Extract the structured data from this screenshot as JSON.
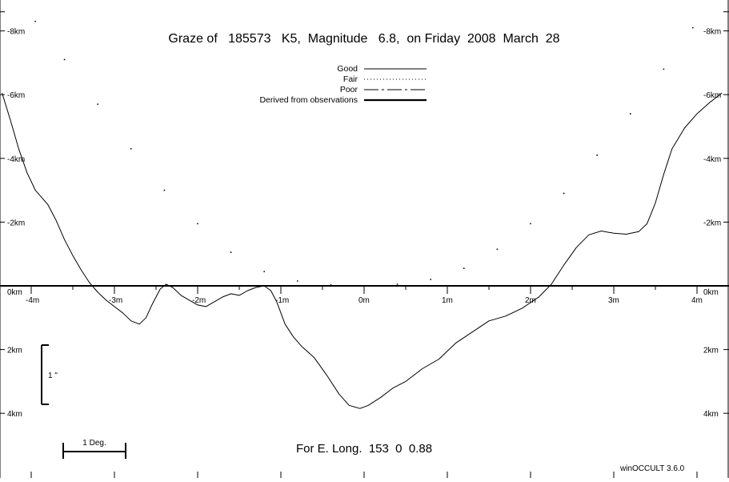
{
  "chart_data": {
    "type": "line",
    "title": "Graze of   185573   K5,  Magnitude   6.8,  on Friday  2008  March  28",
    "subtitle": "For E. Long.  153  0  0.88",
    "software": "winOCCULT 3.6.0",
    "x_unit": "minutes of arc from center",
    "y_unit": "km",
    "xlim": [
      -4.35,
      4.3
    ],
    "ylim": [
      -8.6,
      5.8
    ],
    "x_ticks": [
      {
        "value": -4,
        "label": "-4m"
      },
      {
        "value": -3,
        "label": "-3m"
      },
      {
        "value": -2,
        "label": "-2m"
      },
      {
        "value": -1,
        "label": "-1m"
      },
      {
        "value": 0,
        "label": "0m"
      },
      {
        "value": 1,
        "label": "1m"
      },
      {
        "value": 2,
        "label": "2m"
      },
      {
        "value": 3,
        "label": "3m"
      },
      {
        "value": 4,
        "label": "4m"
      }
    ],
    "y_ticks": [
      {
        "value": -8,
        "label": "-8km"
      },
      {
        "value": -6,
        "label": "-6km"
      },
      {
        "value": -4,
        "label": "-4km"
      },
      {
        "value": -2,
        "label": "-2km"
      },
      {
        "value": 0,
        "label": "0km"
      },
      {
        "value": 2,
        "label": "2km"
      },
      {
        "value": 4,
        "label": "4km"
      }
    ],
    "legend": [
      {
        "label": "Good",
        "style": "solid"
      },
      {
        "label": "Fair",
        "style": "dotted"
      },
      {
        "label": "Poor",
        "style": "dashed"
      },
      {
        "label": "Derived from observations",
        "style": "thick"
      }
    ],
    "scale_bars": {
      "vertical_label": "1 \"",
      "horizontal_label": "1 Deg."
    },
    "series": [
      {
        "name": "Good",
        "style": "solid",
        "points": [
          [
            -4.35,
            -6.05
          ],
          [
            -4.25,
            -5.2
          ],
          [
            -4.15,
            -4.3
          ],
          [
            -4.05,
            -3.55
          ],
          [
            -3.95,
            -3.0
          ],
          [
            -3.8,
            -2.55
          ],
          [
            -3.7,
            -2.05
          ],
          [
            -3.6,
            -1.45
          ],
          [
            -3.5,
            -0.95
          ],
          [
            -3.4,
            -0.5
          ],
          [
            -3.3,
            -0.1
          ],
          [
            -3.2,
            0.2
          ],
          [
            -3.1,
            0.45
          ],
          [
            -3.0,
            0.65
          ],
          [
            -2.9,
            0.85
          ],
          [
            -2.8,
            1.1
          ],
          [
            -2.7,
            1.2
          ],
          [
            -2.62,
            1.0
          ],
          [
            -2.55,
            0.6
          ],
          [
            -2.45,
            0.1
          ],
          [
            -2.38,
            -0.05
          ],
          [
            -2.3,
            0.05
          ],
          [
            -2.2,
            0.3
          ],
          [
            -2.1,
            0.45
          ],
          [
            -2.0,
            0.6
          ],
          [
            -1.9,
            0.65
          ],
          [
            -1.8,
            0.5
          ],
          [
            -1.7,
            0.35
          ],
          [
            -1.6,
            0.25
          ],
          [
            -1.5,
            0.3
          ],
          [
            -1.4,
            0.15
          ],
          [
            -1.3,
            0.05
          ],
          [
            -1.2,
            0.0
          ],
          [
            -1.12,
            0.15
          ],
          [
            -1.05,
            0.5
          ],
          [
            -0.95,
            1.2
          ],
          [
            -0.85,
            1.6
          ],
          [
            -0.75,
            1.9
          ],
          [
            -0.6,
            2.25
          ],
          [
            -0.45,
            2.8
          ],
          [
            -0.3,
            3.4
          ],
          [
            -0.18,
            3.75
          ],
          [
            -0.05,
            3.85
          ],
          [
            0.05,
            3.75
          ],
          [
            0.2,
            3.5
          ],
          [
            0.35,
            3.2
          ],
          [
            0.5,
            3.0
          ],
          [
            0.7,
            2.6
          ],
          [
            0.9,
            2.3
          ],
          [
            1.1,
            1.8
          ],
          [
            1.3,
            1.45
          ],
          [
            1.5,
            1.1
          ],
          [
            1.7,
            0.95
          ],
          [
            1.9,
            0.7
          ],
          [
            2.1,
            0.35
          ],
          [
            2.25,
            -0.05
          ],
          [
            2.4,
            -0.65
          ],
          [
            2.55,
            -1.2
          ],
          [
            2.7,
            -1.6
          ],
          [
            2.85,
            -1.72
          ],
          [
            3.0,
            -1.65
          ],
          [
            3.15,
            -1.62
          ],
          [
            3.3,
            -1.7
          ],
          [
            3.4,
            -1.95
          ],
          [
            3.5,
            -2.6
          ],
          [
            3.6,
            -3.5
          ],
          [
            3.7,
            -4.3
          ],
          [
            3.85,
            -4.95
          ],
          [
            4.0,
            -5.4
          ],
          [
            4.15,
            -5.75
          ],
          [
            4.3,
            -6.05
          ]
        ]
      },
      {
        "name": "Fair",
        "style": "dotted",
        "points": [
          [
            -3.95,
            -8.3
          ],
          [
            -3.6,
            -7.1
          ],
          [
            -3.2,
            -5.7
          ],
          [
            -2.8,
            -4.3
          ],
          [
            -2.4,
            -3.0
          ],
          [
            -2.0,
            -1.95
          ],
          [
            -1.6,
            -1.05
          ],
          [
            -1.2,
            -0.45
          ],
          [
            -0.8,
            -0.15
          ],
          [
            -0.4,
            -0.03
          ],
          [
            0.0,
            0.0
          ],
          [
            0.4,
            -0.05
          ],
          [
            0.8,
            -0.2
          ],
          [
            1.2,
            -0.55
          ],
          [
            1.6,
            -1.15
          ],
          [
            2.0,
            -1.95
          ],
          [
            2.4,
            -2.9
          ],
          [
            2.8,
            -4.1
          ],
          [
            3.2,
            -5.4
          ],
          [
            3.6,
            -6.8
          ],
          [
            3.95,
            -8.1
          ]
        ]
      }
    ]
  }
}
